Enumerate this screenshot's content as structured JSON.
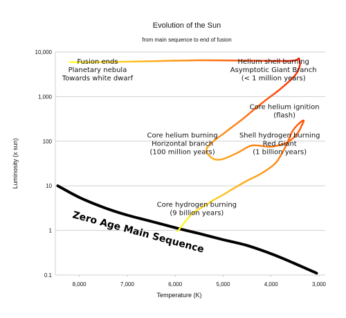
{
  "chart_data": {
    "type": "line",
    "title": "Evolution of the Sun",
    "subtitle": "from main sequence to end of fusion",
    "xlabel": "Temperature (K)",
    "ylabel": "Luminosity (x sun)",
    "x_reversed": true,
    "y_scale": "log",
    "xlim": [
      8500,
      3000
    ],
    "ylim": [
      0.1,
      10000
    ],
    "x_ticks": [
      {
        "value": 8000,
        "label": "8,000"
      },
      {
        "value": 7000,
        "label": "7,000"
      },
      {
        "value": 6000,
        "label": "6,000"
      },
      {
        "value": 5000,
        "label": "5,000"
      },
      {
        "value": 4000,
        "label": "4,000"
      },
      {
        "value": 3000,
        "label": "3,000"
      }
    ],
    "y_ticks": [
      {
        "value": 10000,
        "label": "10,000"
      },
      {
        "value": 1000,
        "label": "1,000"
      },
      {
        "value": 100,
        "label": "100"
      },
      {
        "value": 10,
        "label": "10"
      },
      {
        "value": 1,
        "label": "1"
      },
      {
        "value": 0.1,
        "label": "0.1"
      }
    ],
    "grid": "horizontal",
    "series": [
      {
        "name": "Zero Age Main Sequence",
        "color": "#000000",
        "points": [
          [
            8450,
            10
          ],
          [
            8000,
            5.5
          ],
          [
            7500,
            3.3
          ],
          [
            7000,
            2.2
          ],
          [
            6500,
            1.6
          ],
          [
            6000,
            1.15
          ],
          [
            5500,
            0.85
          ],
          [
            5000,
            0.62
          ],
          [
            4500,
            0.46
          ],
          [
            4000,
            0.3
          ],
          [
            3500,
            0.18
          ],
          [
            3050,
            0.11
          ]
        ]
      },
      {
        "color_start": "#ffff30",
        "color_end": "#ff2000",
        "points": [
          [
            5950,
            0.95
          ],
          [
            5750,
            1.8
          ],
          [
            5600,
            2.6
          ],
          [
            5400,
            3.5
          ],
          [
            5200,
            4.8
          ],
          [
            5000,
            6.3
          ],
          [
            4800,
            8.5
          ],
          [
            4500,
            13
          ],
          [
            4200,
            19
          ],
          [
            3900,
            33
          ],
          [
            3700,
            75
          ],
          [
            3550,
            170
          ],
          [
            3400,
            260
          ],
          [
            3320,
            290
          ],
          [
            3350,
            240
          ],
          [
            3450,
            150
          ],
          [
            3650,
            95
          ],
          [
            3850,
            80
          ],
          [
            4050,
            75
          ],
          [
            4400,
            80
          ],
          [
            4700,
            55
          ],
          [
            5000,
            40
          ],
          [
            5200,
            40
          ],
          [
            5350,
            60
          ],
          [
            5250,
            90
          ],
          [
            4950,
            160
          ],
          [
            4600,
            310
          ],
          [
            4200,
            700
          ],
          [
            3800,
            1500
          ],
          [
            3500,
            3000
          ],
          [
            3400,
            5000
          ],
          [
            3420,
            7200
          ]
        ]
      },
      {
        "color_start": "#ff2000",
        "color_end": "#ffff30",
        "points": [
          [
            3420,
            7200
          ],
          [
            3600,
            6300
          ],
          [
            4500,
            6400
          ],
          [
            5500,
            6500
          ],
          [
            6500,
            6200
          ],
          [
            7200,
            6000
          ],
          [
            7800,
            5900
          ],
          [
            8200,
            5900
          ]
        ]
      }
    ],
    "annotations": [
      {
        "lines": [
          "Fusion ends",
          "Planetary nebula",
          "Towards white dwarf"
        ],
        "x": 7620,
        "y": 5400
      },
      {
        "lines": [
          "Helium shell burning",
          "Asymptotic Giant Branch",
          "(< 1 million years)"
        ],
        "x": 3950,
        "y": 5400
      },
      {
        "lines": [
          "Core helium ignition",
          "(flash)"
        ],
        "x": 3720,
        "y": 520
      },
      {
        "lines": [
          "Core helium burning",
          "Horizontal branch",
          "(100 million years)"
        ],
        "x": 5850,
        "y": 120
      },
      {
        "lines": [
          "Shell hydrogen burning",
          "Red Giant",
          "(1 billion years)"
        ],
        "x": 3820,
        "y": 120
      },
      {
        "lines": [
          "Core hydrogen burning",
          "(9 billion years)"
        ],
        "x": 5550,
        "y": 3.4
      }
    ],
    "zams_label": "Zero Age Main Sequence"
  }
}
